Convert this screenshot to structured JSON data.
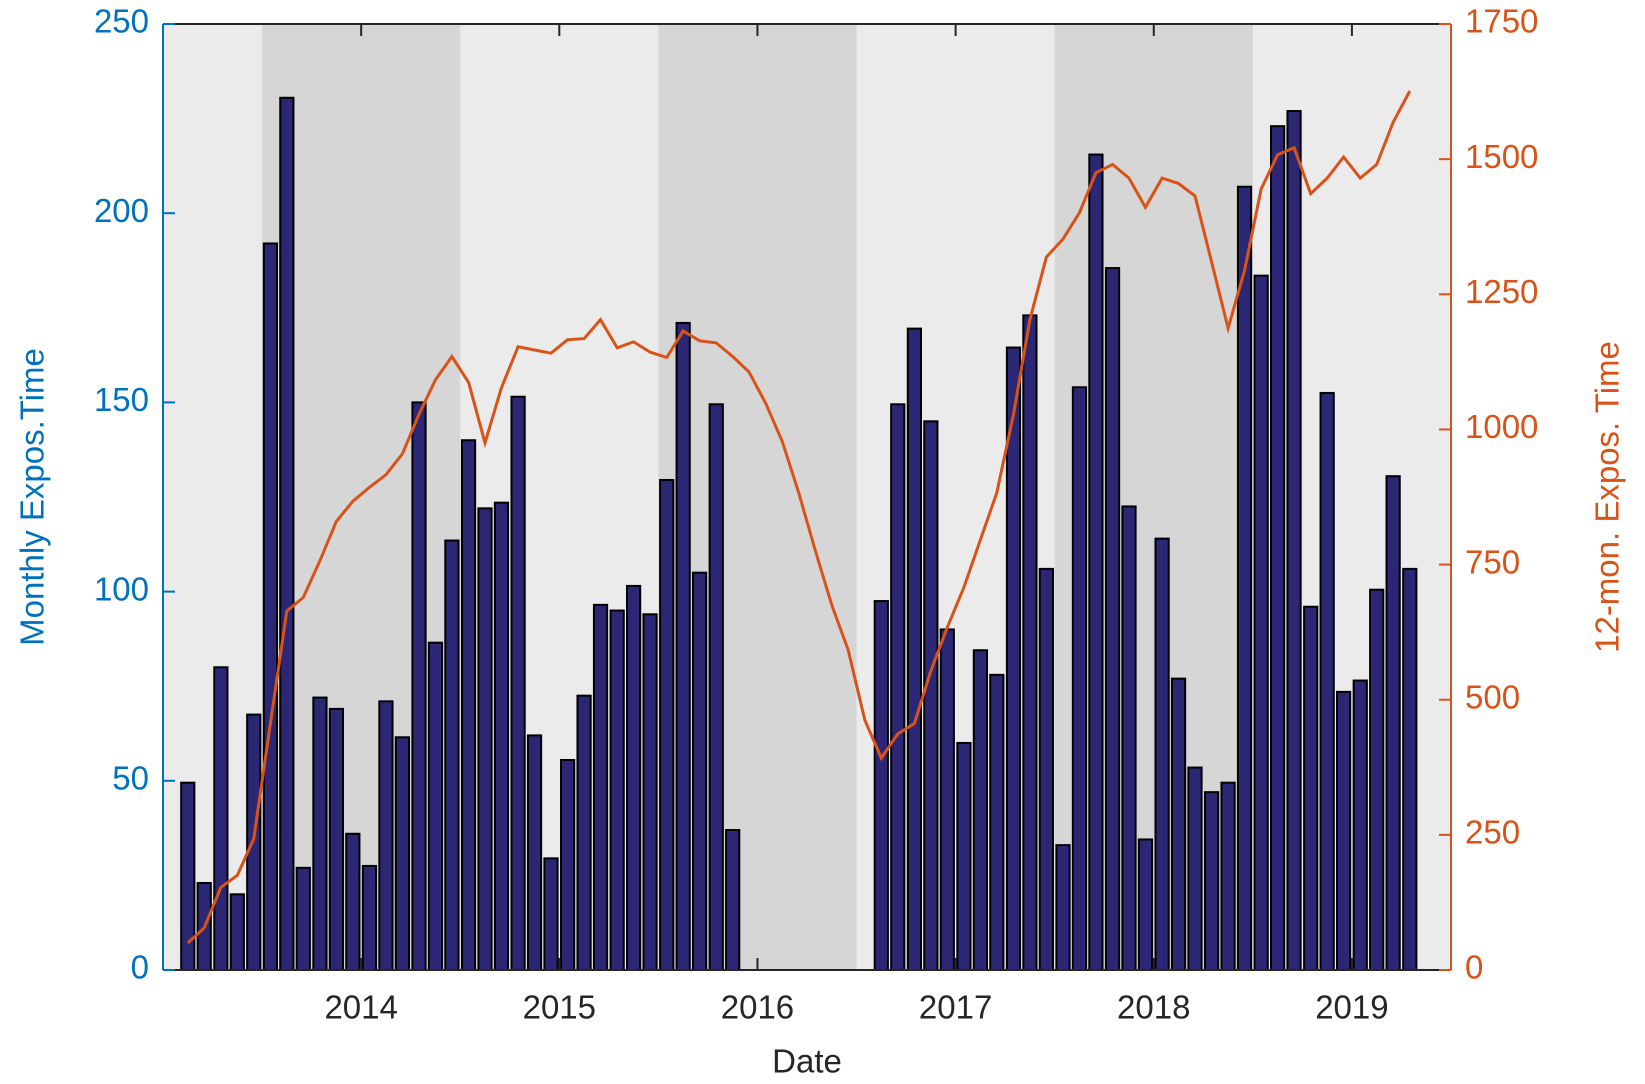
{
  "chart_data": {
    "type": "bar",
    "xlabel": "Date",
    "ylabel": "Monthly Expos.Time",
    "y2label": "12-mon. Expos. Time",
    "x": [
      2013.125,
      2013.208,
      2013.292,
      2013.375,
      2013.458,
      2013.542,
      2013.625,
      2013.708,
      2013.792,
      2013.875,
      2013.958,
      2014.042,
      2014.125,
      2014.208,
      2014.292,
      2014.375,
      2014.458,
      2014.542,
      2014.625,
      2014.708,
      2014.792,
      2014.875,
      2014.958,
      2015.042,
      2015.125,
      2015.208,
      2015.292,
      2015.375,
      2015.458,
      2015.542,
      2015.625,
      2015.708,
      2015.792,
      2015.875,
      2015.958,
      2016.042,
      2016.125,
      2016.208,
      2016.292,
      2016.375,
      2016.458,
      2016.542,
      2016.625,
      2016.708,
      2016.792,
      2016.875,
      2016.958,
      2017.042,
      2017.125,
      2017.208,
      2017.292,
      2017.375,
      2017.458,
      2017.542,
      2017.625,
      2017.708,
      2017.792,
      2017.875,
      2017.958,
      2018.042,
      2018.125,
      2018.208,
      2018.292,
      2018.375,
      2018.458,
      2018.542,
      2018.625,
      2018.708,
      2018.792,
      2018.875,
      2018.958,
      2019.042,
      2019.125,
      2019.208,
      2019.292
    ],
    "series": [
      {
        "type": "bar",
        "color": "#2b2774",
        "edge": "#000000",
        "values": [
          49.5,
          23,
          80,
          20,
          67.5,
          192,
          230.5,
          27,
          72,
          69,
          36,
          27.5,
          71,
          61.5,
          150,
          86.5,
          113.5,
          140,
          122,
          123.5,
          151.5,
          62,
          29.5,
          55.5,
          72.5,
          96.5,
          95,
          101.5,
          94,
          129.5,
          171,
          105,
          149.5,
          37,
          0,
          0,
          0,
          0,
          0,
          0,
          0,
          0,
          97.5,
          149.5,
          169.5,
          145,
          90,
          60,
          84.5,
          78,
          164.5,
          173,
          106,
          33,
          154,
          215.5,
          185.5,
          122.5,
          34.5,
          114,
          77,
          53.5,
          47,
          49.5,
          207,
          183.5,
          223,
          227,
          96,
          152.5,
          73.5,
          76.5,
          100.5,
          130.5,
          106
        ]
      },
      {
        "type": "line",
        "axis": "y2",
        "color": "#d95319",
        "values": [
          50,
          78,
          153,
          175,
          243,
          456,
          664,
          689,
          757,
          830,
          867,
          893,
          916,
          955,
          1028,
          1092,
          1135,
          1087,
          975,
          1077,
          1153,
          1147,
          1141,
          1166,
          1168,
          1203,
          1151,
          1162,
          1143,
          1133,
          1182,
          1164,
          1160,
          1135,
          1106,
          1048,
          978,
          883,
          776,
          675,
          592,
          462,
          392,
          437,
          456,
          553,
          634,
          708,
          796,
          883,
          1028,
          1203,
          1319,
          1352,
          1401,
          1475,
          1490,
          1465,
          1411,
          1465,
          1455,
          1432,
          1310,
          1187,
          1294,
          1445,
          1508,
          1521,
          1436,
          1465,
          1504,
          1465,
          1490,
          1568,
          1626
        ]
      }
    ],
    "xlim": [
      2013,
      2019.5
    ],
    "xticks": [
      2014,
      2015,
      2016,
      2017,
      2018,
      2019
    ],
    "ylim": [
      0,
      250
    ],
    "yticks": [
      0,
      50,
      100,
      150,
      200,
      250
    ],
    "y2lim": [
      0,
      1750
    ],
    "y2ticks": [
      0,
      250,
      500,
      750,
      1000,
      1250,
      1500,
      1750
    ],
    "ycolor": "#0072bd",
    "y2color": "#d95319",
    "bands": [
      "#ebebeb",
      "#d6d6d6"
    ]
  }
}
